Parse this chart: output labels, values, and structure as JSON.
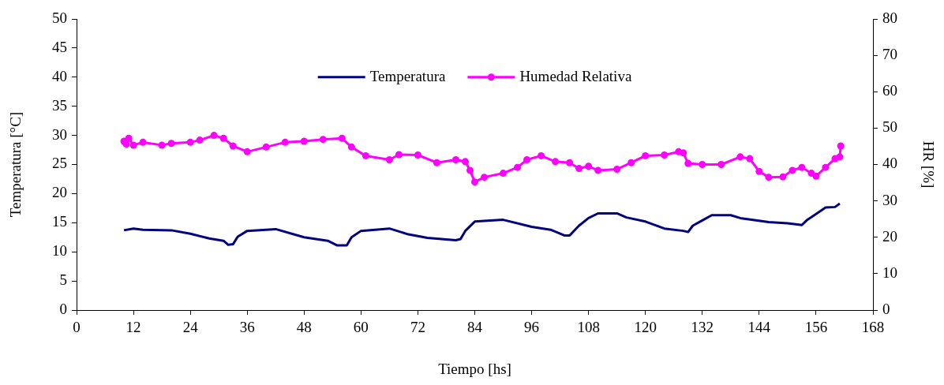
{
  "chart_data": {
    "type": "line",
    "xlabel": "Tiempo [hs]",
    "ylabel": "Temperatura [°C]",
    "y2label": "HR [%]",
    "xlim": [
      0,
      168
    ],
    "xticks": [
      0,
      12,
      24,
      36,
      48,
      60,
      72,
      84,
      96,
      108,
      120,
      132,
      144,
      156,
      168
    ],
    "ylim": [
      0,
      50
    ],
    "yticks": [
      0,
      5,
      10,
      15,
      20,
      25,
      30,
      35,
      40,
      45,
      50
    ],
    "y2lim": [
      0,
      80
    ],
    "y2ticks": [
      0,
      10,
      20,
      30,
      40,
      50,
      60,
      70,
      80
    ],
    "grid": false,
    "legend": "top",
    "line_style": "solid",
    "series": [
      {
        "name": "Temperatura",
        "color": "#000080",
        "marker": "none",
        "x": [
          10,
          12,
          14,
          20,
          24,
          28,
          31,
          32,
          33,
          34,
          36,
          42,
          48,
          53,
          55,
          57,
          58,
          60,
          66,
          70,
          74,
          80,
          81,
          82,
          84,
          90,
          96,
          100,
          103,
          104,
          106,
          108,
          110,
          114,
          116,
          120,
          124,
          128,
          129,
          130,
          132,
          134,
          138,
          140,
          146,
          150,
          152,
          153,
          154,
          156,
          158,
          160,
          161
        ],
        "values": [
          13.7,
          14.0,
          13.8,
          13.7,
          13.1,
          12.3,
          11.9,
          11.2,
          11.3,
          12.6,
          13.6,
          13.9,
          12.5,
          11.9,
          11.1,
          11.1,
          12.5,
          13.6,
          14.0,
          13.0,
          12.4,
          12.0,
          12.2,
          13.6,
          15.2,
          15.5,
          14.3,
          13.8,
          12.8,
          12.8,
          14.5,
          15.8,
          16.6,
          16.6,
          15.9,
          15.2,
          14.0,
          13.6,
          13.4,
          14.5,
          15.4,
          16.3,
          16.3,
          15.8,
          15.1,
          14.9,
          14.7,
          14.6,
          15.4,
          16.5,
          17.6,
          17.7,
          18.3
        ]
      },
      {
        "name": "Humedad Relativa",
        "color": "#ff00ff",
        "marker": "circle",
        "axis": "y2",
        "x": [
          10,
          10.5,
          11,
          12,
          14,
          18,
          20,
          24,
          26,
          29,
          31,
          33,
          36,
          40,
          44,
          48,
          52,
          56,
          58,
          61,
          66,
          68,
          72,
          76,
          80,
          82,
          83,
          84,
          86,
          90,
          93,
          95,
          98,
          101,
          104,
          106,
          108,
          110,
          114,
          117,
          120,
          124,
          127,
          128,
          129,
          132,
          136,
          140,
          142,
          144,
          146,
          149,
          151,
          153,
          155,
          156,
          158,
          160,
          161,
          161.2
        ],
        "values": [
          46.4,
          45.6,
          47.2,
          45.3,
          46.1,
          45.3,
          45.8,
          46.1,
          46.7,
          48.0,
          47.2,
          45.1,
          43.5,
          44.8,
          46.1,
          46.4,
          46.9,
          47.2,
          44.8,
          42.4,
          41.3,
          42.7,
          42.6,
          40.5,
          41.3,
          40.8,
          38.4,
          35.2,
          36.5,
          37.6,
          39.2,
          41.3,
          42.4,
          40.8,
          40.5,
          38.9,
          39.5,
          38.4,
          38.7,
          40.5,
          42.4,
          42.6,
          43.5,
          43.2,
          40.3,
          40.0,
          40.0,
          42.1,
          41.6,
          38.1,
          36.5,
          36.6,
          38.4,
          39.2,
          37.6,
          36.8,
          39.2,
          41.6,
          42.1,
          45.1
        ]
      }
    ]
  }
}
